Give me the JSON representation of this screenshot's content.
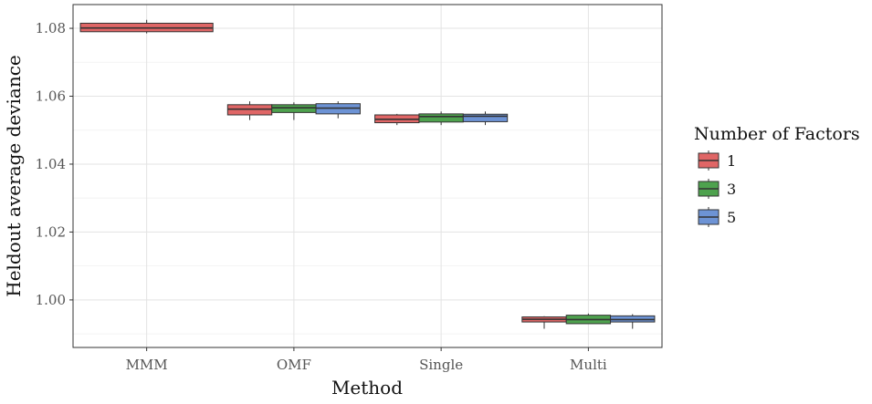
{
  "chart_data": {
    "type": "box",
    "title": "",
    "xlabel": "Method",
    "ylabel": "Heldout average deviance",
    "ylim": [
      0.986,
      1.087
    ],
    "yticks": [
      "1.00",
      "1.02",
      "1.04",
      "1.06",
      "1.08"
    ],
    "ytick_values": [
      1.0,
      1.02,
      1.04,
      1.06,
      1.08
    ],
    "categories": [
      "MMM",
      "OMF",
      "Single",
      "Multi"
    ],
    "grid": true,
    "legend": {
      "title": "Number of Factors",
      "placement": "right"
    },
    "series": [
      {
        "name": "1",
        "color": "#e06666",
        "boxes": [
          {
            "category": "MMM",
            "min": 1.0785,
            "q1": 1.079,
            "median": 1.0801,
            "q3": 1.0815,
            "max": 1.0825
          },
          {
            "category": "OMF",
            "min": 1.053,
            "q1": 1.0545,
            "median": 1.0562,
            "q3": 1.0575,
            "max": 1.0585
          },
          {
            "category": "Single",
            "min": 1.0515,
            "q1": 1.0522,
            "median": 1.0532,
            "q3": 1.0545,
            "max": 1.0548
          },
          {
            "category": "Multi",
            "min": 0.9915,
            "q1": 0.9935,
            "median": 0.9943,
            "q3": 0.995,
            "max": 0.9952
          }
        ]
      },
      {
        "name": "3",
        "color": "#4ea24e",
        "boxes": [
          {
            "category": "OMF",
            "min": 1.053,
            "q1": 1.0552,
            "median": 1.0566,
            "q3": 1.0575,
            "max": 1.0582
          },
          {
            "category": "Single",
            "min": 1.0515,
            "q1": 1.0524,
            "median": 1.054,
            "q3": 1.0548,
            "max": 1.0555
          },
          {
            "category": "Multi",
            "min": 0.993,
            "q1": 0.993,
            "median": 0.9942,
            "q3": 0.9955,
            "max": 0.996
          }
        ]
      },
      {
        "name": "5",
        "color": "#6d93d5",
        "boxes": [
          {
            "category": "OMF",
            "min": 1.0535,
            "q1": 1.0548,
            "median": 1.0565,
            "q3": 1.0578,
            "max": 1.0585
          },
          {
            "category": "Single",
            "min": 1.0515,
            "q1": 1.0525,
            "median": 1.0541,
            "q3": 1.0547,
            "max": 1.0555
          },
          {
            "category": "Multi",
            "min": 0.9915,
            "q1": 0.9935,
            "median": 0.9942,
            "q3": 0.9953,
            "max": 0.9958
          }
        ]
      }
    ]
  }
}
